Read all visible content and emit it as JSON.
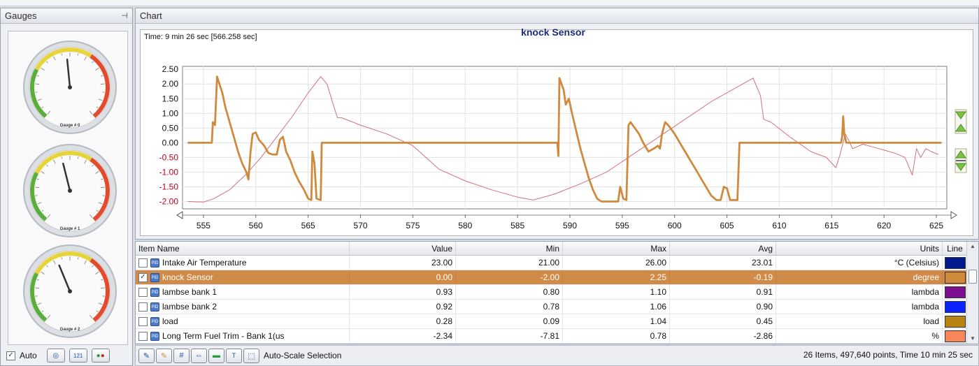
{
  "gauges_panel": {
    "title": "Gauges",
    "pin_icon": "pin-icon",
    "gauges": [
      {
        "label": "Gauge # 0",
        "needle": 0.48
      },
      {
        "label": "Gauge # 1",
        "needle": 0.45
      },
      {
        "label": "Gauge # 2",
        "needle": 0.42
      }
    ],
    "auto_label": "Auto",
    "auto_checked": true
  },
  "chart_panel": {
    "title": "Chart",
    "time_label": "Time: 9 min 26 sec [566.258 sec]"
  },
  "chart_data": {
    "type": "line",
    "title": "knock Sensor",
    "xlim": [
      553,
      626
    ],
    "ylim": [
      -2.25,
      2.6
    ],
    "x_ticks": [
      555,
      560,
      565,
      570,
      575,
      580,
      585,
      590,
      595,
      600,
      605,
      610,
      615,
      620,
      625
    ],
    "y_ticks": [
      2.5,
      2.0,
      1.5,
      1.0,
      0.5,
      0.0,
      -0.5,
      -1.0,
      -1.5,
      -2.0
    ],
    "y_tick_labels": [
      "2.50",
      "2.00",
      "1.50",
      "1.00",
      "0.50",
      "0.00",
      "-0.50",
      "-1.00",
      "-1.50",
      "-2.00"
    ],
    "grid": true,
    "series": [
      {
        "color": "#d08a3e",
        "points": [
          [
            553.5,
            0
          ],
          [
            555.8,
            0
          ],
          [
            555.9,
            0.7
          ],
          [
            556.1,
            0.6
          ],
          [
            556.3,
            2.25
          ],
          [
            556.8,
            1.7
          ],
          [
            557.1,
            1.2
          ],
          [
            557.5,
            0.7
          ],
          [
            557.9,
            0.2
          ],
          [
            558.3,
            -0.3
          ],
          [
            558.7,
            -0.7
          ],
          [
            559.1,
            -1.0
          ],
          [
            559.3,
            -1.25
          ],
          [
            559.5,
            -0.3
          ],
          [
            559.7,
            0.3
          ],
          [
            560.0,
            0.35
          ],
          [
            560.3,
            0.1
          ],
          [
            560.8,
            -0.1
          ],
          [
            561.2,
            -0.35
          ],
          [
            561.6,
            -0.4
          ],
          [
            562.0,
            -0.4
          ],
          [
            562.3,
            0.1
          ],
          [
            562.6,
            0.2
          ],
          [
            562.9,
            -0.3
          ],
          [
            563.3,
            -0.6
          ],
          [
            563.7,
            -1.0
          ],
          [
            564.1,
            -1.3
          ],
          [
            564.6,
            -1.6
          ],
          [
            565.0,
            -1.9
          ],
          [
            565.3,
            -1.95
          ],
          [
            565.4,
            -0.3
          ],
          [
            565.6,
            -0.7
          ],
          [
            565.8,
            -1.9
          ],
          [
            566.2,
            -1.95
          ],
          [
            566.3,
            0
          ],
          [
            588.8,
            0
          ],
          [
            588.9,
            -0.45
          ],
          [
            589.0,
            2.2
          ],
          [
            589.4,
            1.8
          ],
          [
            589.6,
            1.3
          ],
          [
            589.9,
            1.5
          ],
          [
            590.2,
            1.0
          ],
          [
            590.6,
            0.4
          ],
          [
            591.0,
            -0.2
          ],
          [
            591.4,
            -0.7
          ],
          [
            591.8,
            -1.2
          ],
          [
            592.2,
            -1.6
          ],
          [
            592.6,
            -1.9
          ],
          [
            593.0,
            -2.0
          ],
          [
            594.6,
            -2.0
          ],
          [
            594.8,
            -1.5
          ],
          [
            595.1,
            -1.9
          ],
          [
            595.4,
            -1.95
          ],
          [
            595.6,
            0.6
          ],
          [
            595.8,
            0.7
          ],
          [
            596.2,
            0.5
          ],
          [
            596.6,
            0.3
          ],
          [
            597.0,
            0
          ],
          [
            597.5,
            -0.3
          ],
          [
            598.0,
            -0.2
          ],
          [
            598.4,
            -0.1
          ],
          [
            598.6,
            -0.2
          ],
          [
            598.8,
            0.3
          ],
          [
            599.1,
            0.7
          ],
          [
            599.5,
            0.55
          ],
          [
            600.0,
            0.3
          ],
          [
            600.5,
            0.0
          ],
          [
            601.0,
            -0.3
          ],
          [
            601.5,
            -0.6
          ],
          [
            602.0,
            -0.9
          ],
          [
            602.5,
            -1.2
          ],
          [
            603.0,
            -1.5
          ],
          [
            603.5,
            -1.8
          ],
          [
            604.0,
            -1.95
          ],
          [
            604.4,
            -1.95
          ],
          [
            604.7,
            -1.5
          ],
          [
            605.0,
            -1.55
          ],
          [
            605.3,
            -1.95
          ],
          [
            606.0,
            -1.95
          ],
          [
            606.2,
            0
          ],
          [
            615.9,
            0
          ],
          [
            616.0,
            0.2
          ],
          [
            616.1,
            0.9
          ],
          [
            616.2,
            0.3
          ],
          [
            616.4,
            0
          ],
          [
            625.5,
            0
          ]
        ]
      },
      {
        "color": "#d1707c",
        "points": [
          [
            553.5,
            -2.0
          ],
          [
            555.0,
            -2.02
          ],
          [
            556.0,
            -1.9
          ],
          [
            557.5,
            -1.6
          ],
          [
            559.0,
            -1.1
          ],
          [
            560.5,
            -0.5
          ],
          [
            562.0,
            0.2
          ],
          [
            563.5,
            0.9
          ],
          [
            565.0,
            1.7
          ],
          [
            566.2,
            2.25
          ],
          [
            566.8,
            2.0
          ],
          [
            567.4,
            1.3
          ],
          [
            567.8,
            0.85
          ],
          [
            568.2,
            0.85
          ],
          [
            570.0,
            0.6
          ],
          [
            572.5,
            0.3
          ],
          [
            575.0,
            -0.1
          ],
          [
            577.5,
            -0.9
          ],
          [
            580.0,
            -1.3
          ],
          [
            582.5,
            -1.6
          ],
          [
            585.0,
            -1.85
          ],
          [
            586.5,
            -1.95
          ],
          [
            588.5,
            -1.75
          ],
          [
            591.0,
            -1.4
          ],
          [
            593.5,
            -1.0
          ],
          [
            596.0,
            -0.4
          ],
          [
            598.5,
            0.2
          ],
          [
            601.0,
            0.8
          ],
          [
            603.5,
            1.4
          ],
          [
            606.0,
            1.9
          ],
          [
            607.5,
            2.2
          ],
          [
            608.2,
            1.6
          ],
          [
            608.5,
            0.8
          ],
          [
            609.2,
            0.7
          ],
          [
            611.0,
            0.2
          ],
          [
            613.0,
            -0.3
          ],
          [
            614.5,
            -0.5
          ],
          [
            615.4,
            -0.85
          ],
          [
            615.8,
            -0.4
          ],
          [
            616.3,
            0.3
          ],
          [
            616.6,
            0.1
          ],
          [
            617.0,
            -0.2
          ],
          [
            618.0,
            -0.05
          ],
          [
            619.0,
            -0.15
          ],
          [
            620.0,
            -0.25
          ],
          [
            621.0,
            -0.35
          ],
          [
            622.0,
            -0.5
          ],
          [
            622.7,
            -1.1
          ],
          [
            623.1,
            -0.2
          ],
          [
            623.5,
            -0.5
          ],
          [
            624.0,
            -0.2
          ],
          [
            624.5,
            -0.3
          ],
          [
            625.2,
            -0.4
          ]
        ]
      }
    ]
  },
  "table": {
    "headers": {
      "name": "Item Name",
      "value": "Value",
      "min": "Min",
      "max": "Max",
      "avg": "Avg",
      "units": "Units",
      "line": "Line"
    },
    "rows": [
      {
        "checked": false,
        "selected": false,
        "name": "Intake Air Temperature",
        "value": "23.00",
        "min": "21.00",
        "max": "26.00",
        "avg": "23.01",
        "units": "°C (Celsius)",
        "color": "#001a8c"
      },
      {
        "checked": true,
        "selected": true,
        "name": "knock Sensor",
        "value": "0.00",
        "min": "-2.00",
        "max": "2.25",
        "avg": "-0.19",
        "units": "degree",
        "color": "#d08a3e"
      },
      {
        "checked": false,
        "selected": false,
        "name": "lambse bank 1",
        "value": "0.93",
        "min": "0.80",
        "max": "1.10",
        "avg": "0.91",
        "units": "lambda",
        "color": "#7b0f8f"
      },
      {
        "checked": false,
        "selected": false,
        "name": "lambse bank 2",
        "value": "0.92",
        "min": "0.78",
        "max": "1.06",
        "avg": "0.90",
        "units": "lambda",
        "color": "#0b23ff"
      },
      {
        "checked": false,
        "selected": false,
        "name": "load",
        "value": "0.28",
        "min": "0.09",
        "max": "1.04",
        "avg": "0.45",
        "units": "load",
        "color": "#b88314"
      },
      {
        "checked": false,
        "selected": false,
        "name": "Long Term Fuel Trim - Bank 1(us",
        "value": "-2.34",
        "min": "-7.81",
        "max": "0.78",
        "avg": "-2.86",
        "units": "%",
        "color": "#f7875b"
      }
    ]
  },
  "toolbar": {
    "auto_scale_label": "Auto-Scale Selection",
    "status": "26 Items, 497,640 points, Time 10 min 25 sec"
  }
}
